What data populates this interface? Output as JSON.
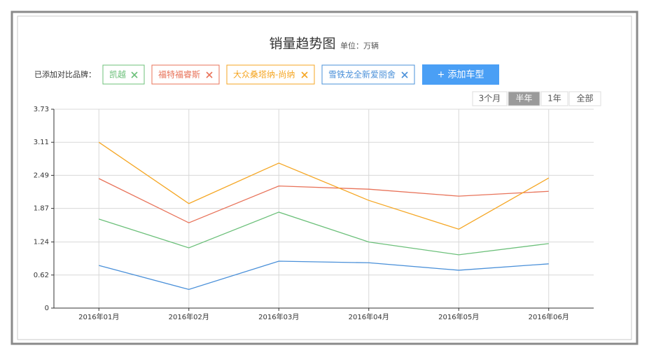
{
  "chart_data": {
    "type": "line",
    "title": "销量趋势图",
    "subtitle": "单位：万辆",
    "brand_label": "已添加对比品牌：",
    "add_button": "+ 添加车型",
    "periods": [
      "3个月",
      "半年",
      "1年",
      "全部"
    ],
    "selected_period": 1,
    "categories": [
      "2016年01月",
      "2016年02月",
      "2016年03月",
      "2016年04月",
      "2016年05月",
      "2016年06月"
    ],
    "series": [
      {
        "name": "凯越",
        "color": "#6cc07a",
        "values": [
          1.67,
          1.13,
          1.8,
          1.24,
          1.0,
          1.21
        ]
      },
      {
        "name": "福特福睿斯",
        "color": "#e8735a",
        "values": [
          2.43,
          1.6,
          2.29,
          2.23,
          2.1,
          2.19
        ]
      },
      {
        "name": "大众桑塔纳-尚纳",
        "color": "#f5a623",
        "values": [
          3.11,
          1.96,
          2.72,
          2.02,
          1.48,
          2.44
        ]
      },
      {
        "name": "雪铁龙全新爱丽舍",
        "color": "#4a90d9",
        "values": [
          0.8,
          0.35,
          0.88,
          0.85,
          0.71,
          0.83
        ]
      }
    ],
    "ylim": [
      0,
      3.73
    ],
    "yticks": [
      0,
      0.62,
      1.24,
      1.87,
      2.49,
      3.11,
      3.73
    ],
    "grid": true
  }
}
